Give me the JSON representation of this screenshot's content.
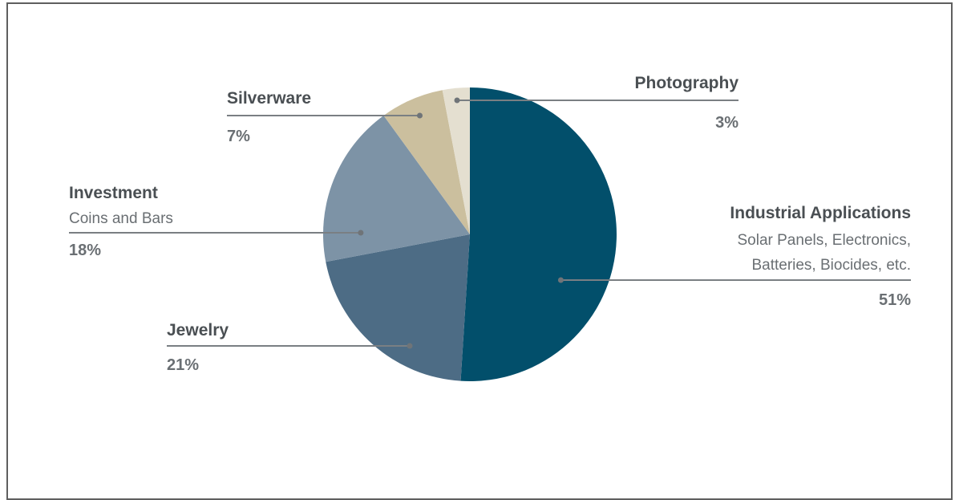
{
  "chart_data": {
    "type": "pie",
    "title": "",
    "slices": [
      {
        "name": "Industrial Applications",
        "subtitle_lines": [
          "Solar Panels, Electronics,",
          "Batteries, Biocides, etc."
        ],
        "value": 51,
        "label": "51%",
        "color": "#024f6b"
      },
      {
        "name": "Jewelry",
        "subtitle_lines": [],
        "value": 21,
        "label": "21%",
        "color": "#4d6c85"
      },
      {
        "name": "Investment",
        "subtitle_lines": [
          "Coins and Bars"
        ],
        "value": 18,
        "label": "18%",
        "color": "#7d93a6"
      },
      {
        "name": "Silverware",
        "subtitle_lines": [],
        "value": 7,
        "label": "7%",
        "color": "#cbbf9e"
      },
      {
        "name": "Photography",
        "subtitle_lines": [],
        "value": 3,
        "label": "3%",
        "color": "#e4dfd0"
      }
    ],
    "start_angle_deg": 0,
    "direction": "clockwise",
    "legend": "none"
  }
}
